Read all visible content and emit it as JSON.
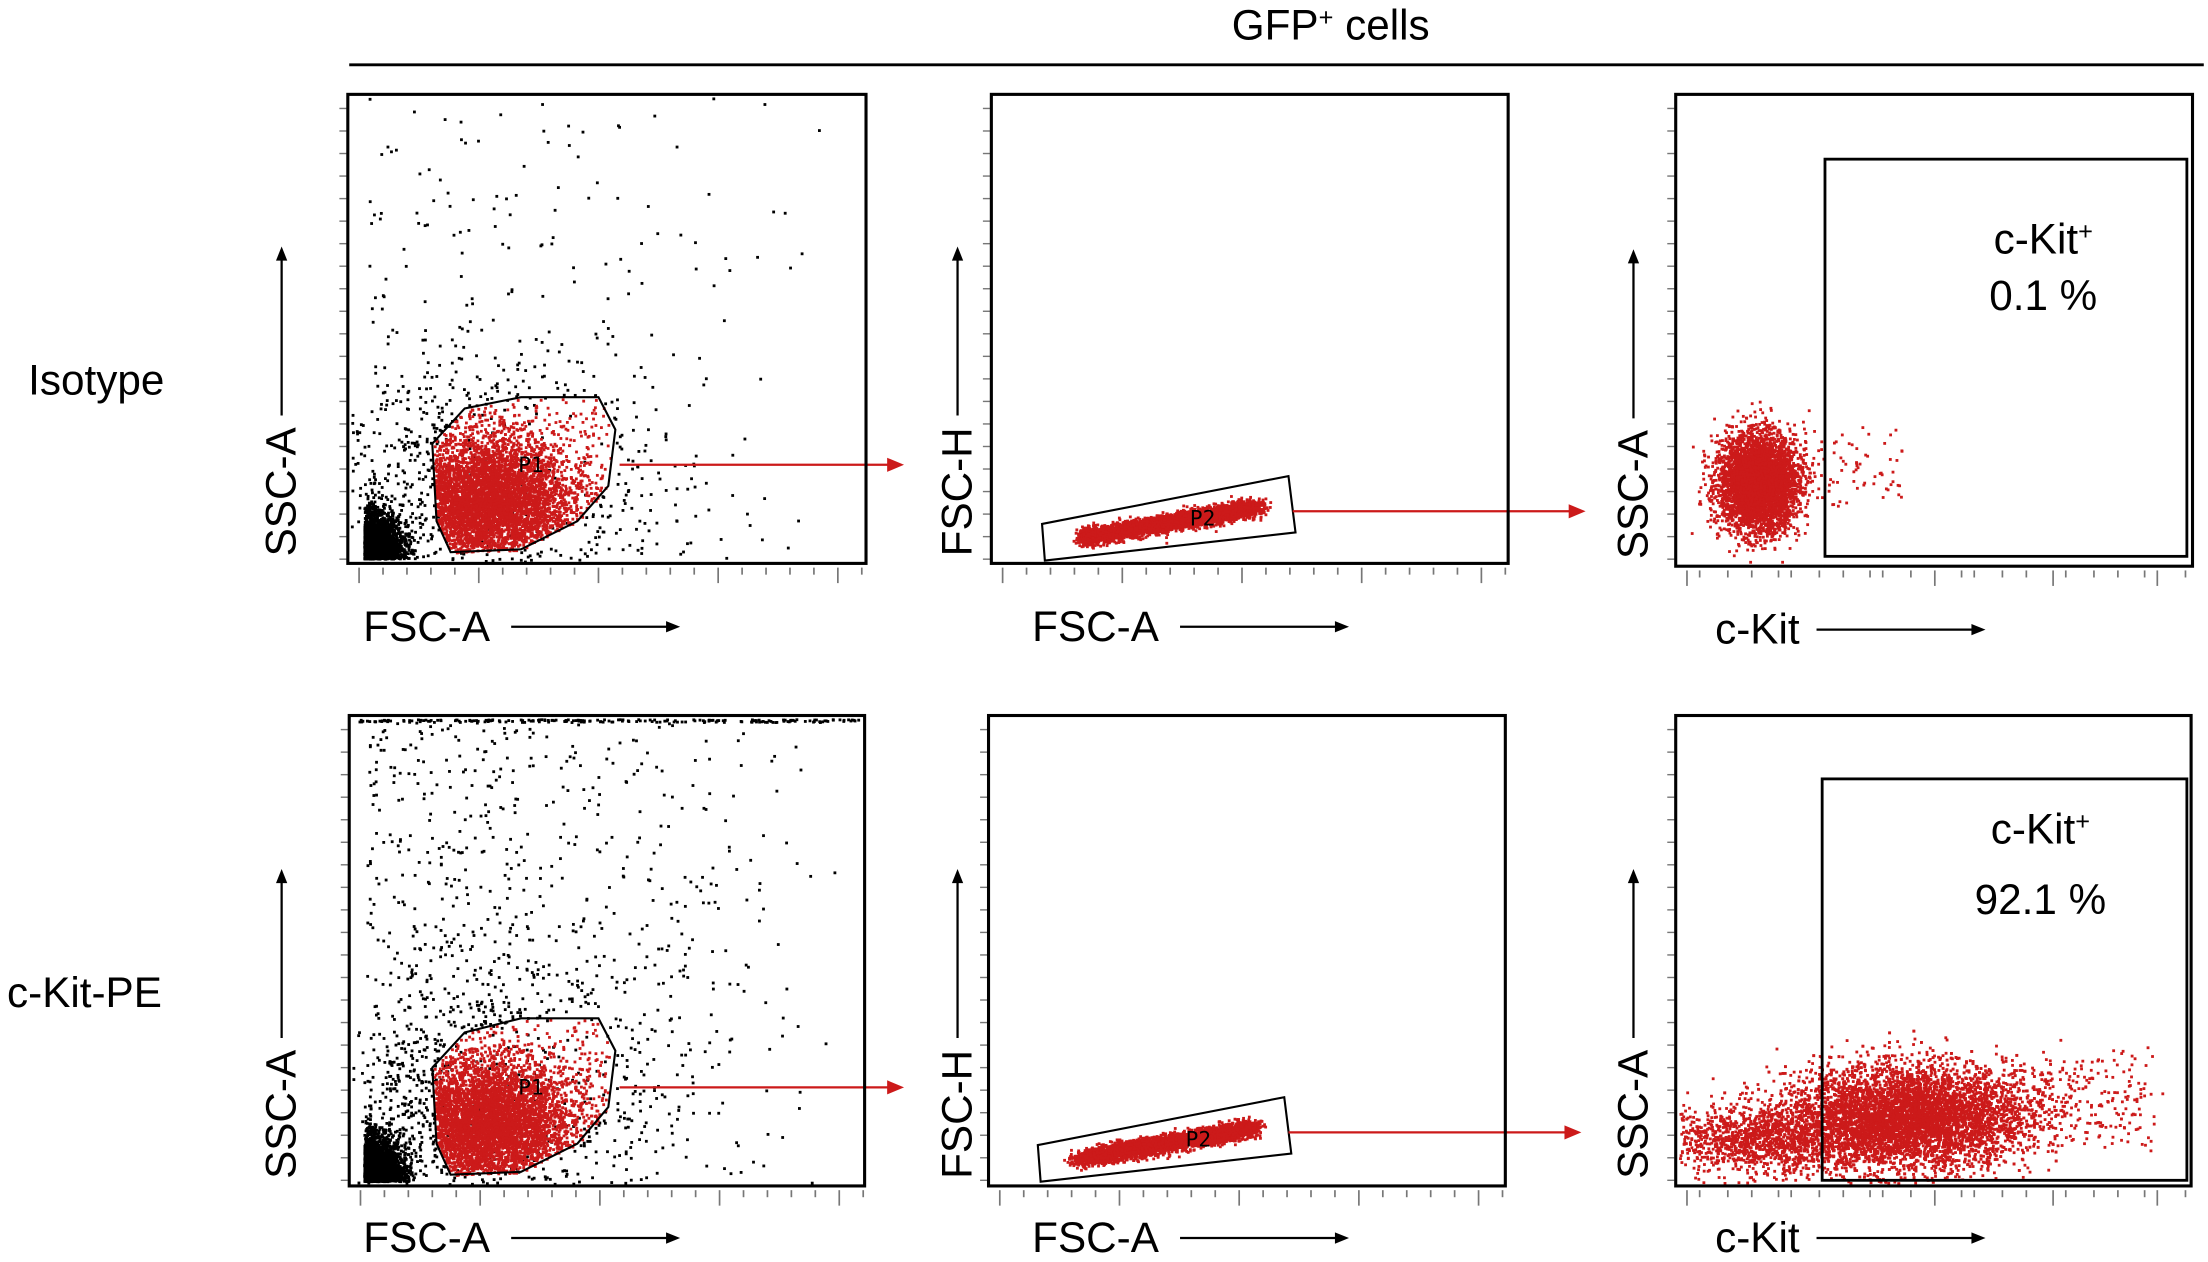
{
  "header": {
    "title_main": "GFP",
    "title_sup": "+",
    "title_rest": " cells"
  },
  "rows": [
    {
      "label": "Isotype"
    },
    {
      "label": "c-Kit-PE"
    }
  ],
  "colors": {
    "gated": "#cc1a1a",
    "ungated": "#000000",
    "arrow": "#cc1a1a"
  },
  "chart_data": [
    {
      "type": "scatter",
      "row": "Isotype",
      "xlabel": "FSC-A",
      "ylabel": "SSC-A",
      "gate": {
        "name": "P1",
        "shape": "polygon"
      }
    },
    {
      "type": "scatter",
      "row": "Isotype",
      "xlabel": "FSC-A",
      "ylabel": "FSC-H",
      "gate": {
        "name": "P2",
        "shape": "polygon"
      }
    },
    {
      "type": "scatter",
      "row": "Isotype",
      "xlabel": "c-Kit",
      "ylabel": "SSC-A",
      "x_scale": "log",
      "gate": {
        "name": "c-Kit",
        "sup": "+",
        "shape": "rectangle",
        "percent": "0.1 %"
      }
    },
    {
      "type": "scatter",
      "row": "c-Kit-PE",
      "xlabel": "FSC-A",
      "ylabel": "SSC-A",
      "gate": {
        "name": "P1",
        "shape": "polygon"
      }
    },
    {
      "type": "scatter",
      "row": "c-Kit-PE",
      "xlabel": "FSC-A",
      "ylabel": "FSC-H",
      "gate": {
        "name": "P2",
        "shape": "polygon"
      }
    },
    {
      "type": "scatter",
      "row": "c-Kit-PE",
      "xlabel": "c-Kit",
      "ylabel": "SSC-A",
      "x_scale": "log",
      "gate": {
        "name": "c-Kit",
        "sup": "+",
        "shape": "rectangle",
        "percent": "92.1 %"
      }
    }
  ]
}
